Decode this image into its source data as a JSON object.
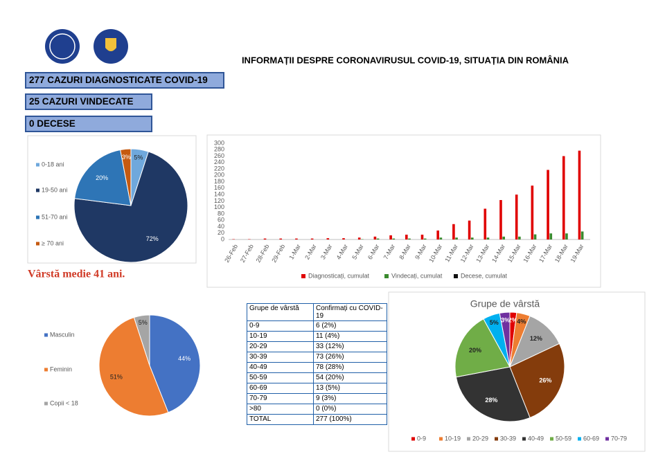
{
  "header": {
    "title": "INFORMAȚII DESPRE CORONAVIRUSUL COVID-19, SITUAȚIA DIN ROMÂNIA"
  },
  "stats": [
    {
      "text": "277 CAZURI DIAGNOSTICATE COVID-19"
    },
    {
      "text": "25 CAZURI VINDECATE"
    },
    {
      "text": "0 DECESE"
    }
  ],
  "note": "Vârstă medie 41 ani.",
  "table": {
    "header": [
      "Grupe de vârstă",
      "Confirmați cu COVID-19"
    ],
    "rows": [
      [
        "0-9",
        "6 (2%)"
      ],
      [
        "10-19",
        "11 (4%)"
      ],
      [
        "20-29",
        "33 (12%)"
      ],
      [
        "30-39",
        "73 (26%)"
      ],
      [
        "40-49",
        "78 (28%)"
      ],
      [
        "50-59",
        "54 (20%)"
      ],
      [
        "60-69",
        "13 (5%)"
      ],
      [
        "70-79",
        "9 (3%)"
      ],
      [
        ">80",
        "0 (0%)"
      ],
      [
        "TOTAL",
        "277 (100%)"
      ]
    ]
  },
  "chart_data": [
    {
      "type": "pie",
      "legend": "left",
      "categories": [
        "0-18 ani",
        "19-50 ani",
        "51-70 ani",
        "≥ 70 ani"
      ],
      "values": [
        5,
        72,
        20,
        3
      ],
      "value_labels": [
        "5%",
        "72%",
        "20%",
        "3%"
      ],
      "colors": [
        "#6fa8dc",
        "#1f3864",
        "#2e75b6",
        "#c55a11"
      ]
    },
    {
      "type": "bar",
      "legend": "bottom",
      "grid": false,
      "categories": [
        "26-Feb",
        "27-Feb",
        "28-Feb",
        "29-Feb",
        "1-Mar",
        "2-Mar",
        "3-Mar",
        "4-Mar",
        "5-Mar",
        "6-Mar",
        "7-Mar",
        "8-Mar",
        "9-Mar",
        "10-Mar",
        "11-Mar",
        "12-Mar",
        "13-Mar",
        "14-Mar",
        "15-Mar",
        "16-Mar",
        "17-Mar",
        "18-Mar",
        "19-Mar"
      ],
      "series": [
        {
          "name": "Diagnosticați, cumulat",
          "color": "#e00000",
          "values": [
            1,
            1,
            3,
            3,
            3,
            3,
            4,
            4,
            6,
            9,
            13,
            15,
            15,
            28,
            48,
            59,
            96,
            123,
            140,
            168,
            217,
            260,
            277
          ]
        },
        {
          "name": "Vindecați, cumulat",
          "color": "#3a8a2e",
          "values": [
            0,
            0,
            0,
            0,
            0,
            0,
            0,
            0,
            1,
            3,
            3,
            3,
            3,
            6,
            6,
            6,
            6,
            9,
            9,
            16,
            19,
            19,
            25
          ]
        },
        {
          "name": "Decese, cumulat",
          "color": "#111111",
          "values": [
            0,
            0,
            0,
            0,
            0,
            0,
            0,
            0,
            0,
            0,
            0,
            0,
            0,
            0,
            0,
            0,
            0,
            0,
            0,
            0,
            0,
            0,
            0
          ]
        }
      ],
      "ylim": [
        0,
        300
      ],
      "yticks": [
        0,
        20,
        40,
        60,
        80,
        100,
        120,
        140,
        160,
        180,
        200,
        220,
        240,
        260,
        280,
        300
      ]
    },
    {
      "type": "pie",
      "legend": "left",
      "categories": [
        "Masculin",
        "Feminin",
        "Copii < 18"
      ],
      "values": [
        44,
        51,
        5
      ],
      "value_labels": [
        "44%",
        "51%",
        "5%"
      ],
      "colors": [
        "#4472c4",
        "#ed7d31",
        "#a5a5a5"
      ]
    },
    {
      "type": "pie",
      "legend": "bottom",
      "title": "Grupe de vârstă",
      "categories": [
        "0-9",
        "10-19",
        "20-29",
        "30-39",
        "40-49",
        "50-59",
        "60-69",
        "70-79"
      ],
      "values": [
        2,
        4,
        12,
        26,
        28,
        20,
        5,
        3
      ],
      "value_labels": [
        "2%",
        "4%",
        "12%",
        "26%",
        "28%",
        "20%",
        "5%",
        "3%"
      ],
      "colors": [
        "#e00000",
        "#ed7d31",
        "#a5a5a5",
        "#843c0c",
        "#333333",
        "#70ad47",
        "#00b0f0",
        "#7030a0"
      ]
    }
  ]
}
